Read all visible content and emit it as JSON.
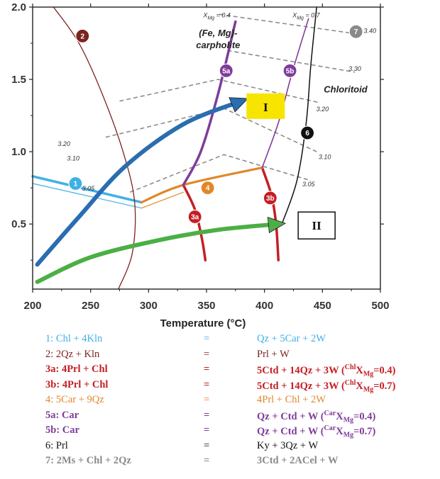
{
  "chart_data": {
    "type": "line",
    "xlabel": "Temperature (°C)",
    "ylabel": "",
    "xlim": [
      200,
      500
    ],
    "ylim": [
      0.05,
      2.0
    ],
    "xticks": [
      200,
      250,
      300,
      350,
      400,
      450,
      500
    ],
    "yticks": [
      0.5,
      1.0,
      1.5,
      2.0
    ],
    "xtick_labels": [
      "200",
      "250",
      "300",
      "350",
      "400",
      "450",
      "500"
    ],
    "ytick_labels": [
      "0.5",
      "1.0",
      "1.5",
      "2.0"
    ],
    "region_labels": [
      {
        "text_line1": "(Fe, Mg)-",
        "text_line2": "carpholite",
        "at": [
          360,
          1.8
        ]
      },
      {
        "text": "Chloritoid",
        "at": [
          470,
          1.41
        ]
      }
    ],
    "xmg_labels": [
      {
        "base": "X",
        "sub": "Mg",
        "value": " = 0.4",
        "at": [
          359,
          1.93
        ]
      },
      {
        "base": "X",
        "sub": "Mg",
        "value": " = 0.7",
        "at": [
          436,
          1.93
        ]
      }
    ],
    "reactions": [
      {
        "id": "1",
        "color": "#3fb0e6",
        "points": [
          [
            200,
            0.83
          ],
          [
            294,
            0.65
          ]
        ]
      },
      {
        "id": "1b",
        "color": "#3fb0e6",
        "points": [
          [
            200,
            0.78
          ],
          [
            294,
            0.61
          ]
        ]
      },
      {
        "id": "2",
        "color": "#7b2320",
        "points": [
          [
            218,
            2.0
          ],
          [
            240,
            1.75
          ],
          [
            260,
            1.4
          ],
          [
            278,
            1.0
          ],
          [
            288,
            0.65
          ],
          [
            286,
            0.3
          ],
          [
            274,
            0.05
          ]
        ]
      },
      {
        "id": "3a",
        "color": "#c41e24",
        "points": [
          [
            330,
            0.77
          ],
          [
            340,
            0.6
          ],
          [
            346,
            0.4
          ],
          [
            349,
            0.25
          ]
        ]
      },
      {
        "id": "3b",
        "color": "#c41e24",
        "points": [
          [
            398,
            0.89
          ],
          [
            406,
            0.7
          ],
          [
            410,
            0.5
          ],
          [
            412,
            0.25
          ]
        ]
      },
      {
        "id": "4",
        "color": "#e0882a",
        "points": [
          [
            294,
            0.65
          ],
          [
            330,
            0.77
          ],
          [
            398,
            0.89
          ]
        ]
      },
      {
        "id": "4b",
        "color": "#e0882a",
        "points": [
          [
            294,
            0.61
          ],
          [
            330,
            0.72
          ]
        ]
      },
      {
        "id": "5a",
        "color": "#7f3c99",
        "points": [
          [
            330,
            0.77
          ],
          [
            345,
            1.0
          ],
          [
            360,
            1.4
          ],
          [
            375,
            1.9
          ]
        ]
      },
      {
        "id": "5b",
        "color": "#7f3c99",
        "points": [
          [
            398,
            0.89
          ],
          [
            412,
            1.2
          ],
          [
            424,
            1.55
          ],
          [
            438,
            1.92
          ]
        ]
      },
      {
        "id": "6",
        "color": "#111111",
        "points": [
          [
            445,
            2.0
          ],
          [
            440,
            1.6
          ],
          [
            436,
            1.2
          ],
          [
            428,
            0.8
          ],
          [
            415,
            0.5
          ]
        ]
      }
    ],
    "isopleths": [
      {
        "label": "3.40",
        "points": [
          [
            361,
            1.95
          ],
          [
            475,
            1.82
          ]
        ]
      },
      {
        "label": "3.30",
        "points": [
          [
            368,
            1.7
          ],
          [
            478,
            1.55
          ]
        ]
      },
      {
        "label": "3.20",
        "points": [
          [
            275,
            1.35
          ],
          [
            360,
            1.5
          ],
          [
            447,
            1.34
          ]
        ]
      },
      {
        "label": "3.10",
        "points": [
          [
            263,
            1.1
          ],
          [
            365,
            1.3
          ],
          [
            445,
            1.0
          ]
        ]
      },
      {
        "label": "3.05",
        "points": [
          [
            284,
            0.72
          ],
          [
            365,
            0.98
          ],
          [
            440,
            0.8
          ]
        ]
      }
    ],
    "isopleth_labels": [
      {
        "text": "3.40",
        "at": [
          491,
          1.82
        ]
      },
      {
        "text": "3.30",
        "at": [
          478,
          1.56
        ]
      },
      {
        "text": "3.20",
        "at": [
          450,
          1.28
        ]
      },
      {
        "text": "3.10",
        "at": [
          452,
          0.95
        ]
      },
      {
        "text": "3.05",
        "at": [
          438,
          0.76
        ]
      },
      {
        "text": "3.20",
        "at": [
          227,
          1.04
        ]
      },
      {
        "text": "3.10",
        "at": [
          235,
          0.94
        ]
      },
      {
        "text": "3.05",
        "at": [
          248,
          0.73
        ]
      }
    ],
    "paths": [
      {
        "id": "I",
        "color": "#2a6db0",
        "points": [
          [
            204,
            0.22
          ],
          [
            240,
            0.55
          ],
          [
            280,
            0.9
          ],
          [
            330,
            1.19
          ],
          [
            380,
            1.35
          ]
        ]
      },
      {
        "id": "II",
        "color": "#4caf45",
        "points": [
          [
            204,
            0.1
          ],
          [
            250,
            0.27
          ],
          [
            310,
            0.39
          ],
          [
            360,
            0.46
          ],
          [
            412,
            0.5
          ]
        ]
      }
    ],
    "badges": [
      {
        "text": "1",
        "color": "#3fb0e6",
        "at": [
          237,
          0.78
        ]
      },
      {
        "text": "2",
        "color": "#7b2320",
        "at": [
          243,
          1.8
        ]
      },
      {
        "text": "3a",
        "color": "#c41e24",
        "at": [
          340,
          0.55
        ]
      },
      {
        "text": "3b",
        "color": "#c41e24",
        "at": [
          405,
          0.68
        ]
      },
      {
        "text": "4",
        "color": "#e0882a",
        "at": [
          351,
          0.75
        ]
      },
      {
        "text": "5a",
        "color": "#7f3c99",
        "at": [
          367,
          1.56
        ]
      },
      {
        "text": "5b",
        "color": "#7f3c99",
        "at": [
          422,
          1.56
        ]
      },
      {
        "text": "6",
        "color": "#111111",
        "at": [
          437,
          1.13
        ]
      },
      {
        "text": "7",
        "color": "#8a8a8a",
        "at": [
          479,
          1.83
        ]
      }
    ],
    "path_labels": [
      {
        "text": "I",
        "at": [
          401,
          1.31
        ],
        "box": "yellow"
      },
      {
        "text": "II",
        "at": [
          445,
          0.49
        ],
        "box": "white"
      }
    ]
  },
  "legend": [
    {
      "color": "#3fb0e6",
      "bold": false,
      "left": "1: Chl + 4Kln",
      "eq": "=",
      "right": "Qz + 5Car + 2W"
    },
    {
      "color": "#7b2320",
      "bold": false,
      "left": "2: 2Qz + Kln",
      "eq": "=",
      "right": "Prl + W"
    },
    {
      "color": "#c41e24",
      "bold": true,
      "left": "3a: 4Prl + Chl",
      "eq": "=",
      "right": "5Ctd + 14Qz + 3W (",
      "sup": "Chl",
      "x": "X",
      "sub": "Mg",
      "tail": "=0.4)"
    },
    {
      "color": "#c41e24",
      "bold": true,
      "left": "3b: 4Prl + Chl",
      "eq": "=",
      "right": "5Ctd + 14Qz + 3W (",
      "sup": "Chl",
      "x": "X",
      "sub": "Mg",
      "tail": "=0.7)"
    },
    {
      "color": "#e0882a",
      "bold": false,
      "left": "4: 5Car + 9Qz",
      "eq": "=",
      "right": "4Prl + Chl + 2W"
    },
    {
      "color": "#7f3c99",
      "bold": true,
      "left": "5a: Car",
      "eq": "=",
      "right": "Qz + Ctd + W  (",
      "sup": "Car",
      "x": "X",
      "sub": "Mg",
      "tail": "=0.4)"
    },
    {
      "color": "#7f3c99",
      "bold": true,
      "left": "5b: Car",
      "eq": "=",
      "right": "Qz + Ctd + W  (",
      "sup": "Car",
      "x": "X",
      "sub": "Mg",
      "tail": "=0.7)"
    },
    {
      "color": "#111111",
      "bold": false,
      "left": "6: Prl",
      "eq": "=",
      "right": "Ky + 3Qz + W"
    },
    {
      "color": "#8a8a8a",
      "bold": true,
      "left": "7: 2Ms + Chl + 2Qz",
      "eq": "=",
      "right": "3Ctd + 2ACel + W"
    }
  ]
}
